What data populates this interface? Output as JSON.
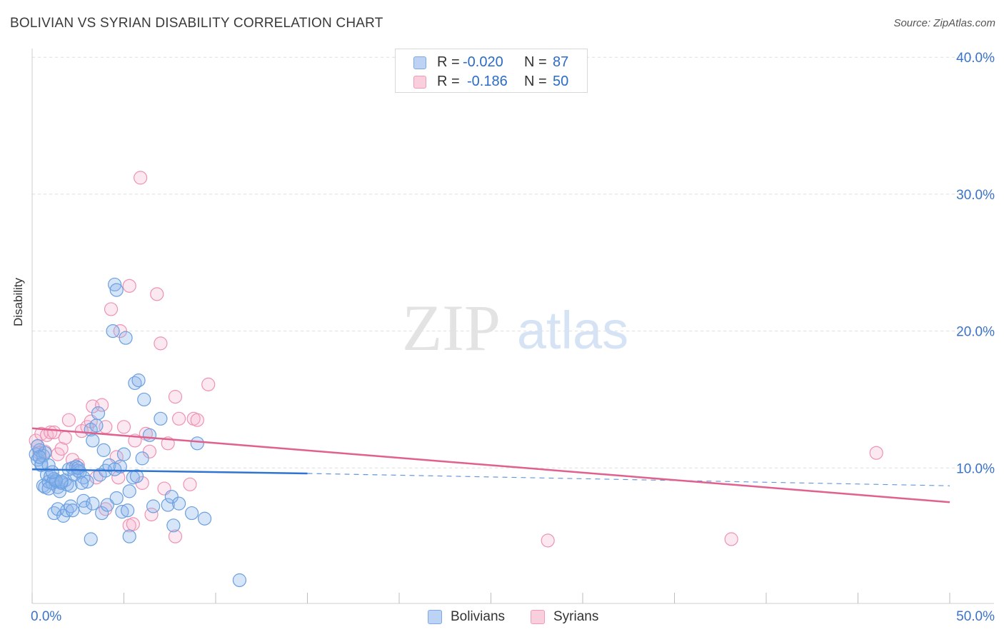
{
  "header": {
    "title": "BOLIVIAN VS SYRIAN DISABILITY CORRELATION CHART",
    "source": "Source: ZipAtlas.com"
  },
  "watermark": {
    "zip": "ZIP",
    "atlas": "atlas"
  },
  "legend": {
    "rows": [
      {
        "r_label": "R =",
        "r_value": "-0.020",
        "n_label": "N =",
        "n_value": "87",
        "color": "#7aa8e8",
        "fill": "#bcd3f5"
      },
      {
        "r_label": "R =",
        "r_value": "-0.186",
        "n_label": "N =",
        "n_value": "50",
        "color": "#ee9ab8",
        "fill": "#f9cfdd"
      }
    ]
  },
  "bottom_legend": {
    "items": [
      "Bolivians",
      "Syrians"
    ]
  },
  "colors": {
    "bolivian_stroke": "#6a9fe0",
    "bolivian_fill": "rgba(140,180,235,0.35)",
    "syrian_stroke": "#ee92b2",
    "syrian_fill": "rgba(245,180,205,0.30)",
    "bolivian_line": "#2f74d0",
    "syrian_line": "#e0608e",
    "axis_text": "#3b73c8",
    "grid": "#dddddd"
  },
  "chart_data": {
    "type": "scatter",
    "title": "BOLIVIAN VS SYRIAN DISABILITY CORRELATION CHART",
    "xlabel": "",
    "ylabel": "Disability",
    "xlim": [
      0,
      50
    ],
    "ylim": [
      0,
      40
    ],
    "x_tick_labels": [
      "0.0%",
      "50.0%"
    ],
    "y_ticks": [
      10,
      20,
      30,
      40
    ],
    "y_tick_labels": [
      "10.0%",
      "20.0%",
      "30.0%",
      "40.0%"
    ],
    "series": [
      {
        "name": "Bolivians",
        "r": -0.02,
        "n": 87,
        "trend": {
          "x_start": 0,
          "y_start": 9.9,
          "x_solid_end": 15,
          "y_solid_end": 9.6,
          "x_end": 50,
          "y_end": 8.7
        },
        "points": [
          [
            0.2,
            11.0
          ],
          [
            0.3,
            10.6
          ],
          [
            0.4,
            11.3
          ],
          [
            0.5,
            10.2
          ],
          [
            0.6,
            10.9
          ],
          [
            0.7,
            11.1
          ],
          [
            0.5,
            10.3
          ],
          [
            0.8,
            9.5
          ],
          [
            0.6,
            8.7
          ],
          [
            0.7,
            8.6
          ],
          [
            0.9,
            9.0
          ],
          [
            1.0,
            9.4
          ],
          [
            1.1,
            8.9
          ],
          [
            1.2,
            9.2
          ],
          [
            1.3,
            9.0
          ],
          [
            1.4,
            8.6
          ],
          [
            1.5,
            8.3
          ],
          [
            1.6,
            8.9
          ],
          [
            1.8,
            9.1
          ],
          [
            1.9,
            8.8
          ],
          [
            2.0,
            9.9
          ],
          [
            2.1,
            8.7
          ],
          [
            2.2,
            10.0
          ],
          [
            2.4,
            10.1
          ],
          [
            2.5,
            9.8
          ],
          [
            2.6,
            9.7
          ],
          [
            2.8,
            9.3
          ],
          [
            3.0,
            9.0
          ],
          [
            3.2,
            12.8
          ],
          [
            3.3,
            12.0
          ],
          [
            3.5,
            13.1
          ],
          [
            3.6,
            14.0
          ],
          [
            3.7,
            9.5
          ],
          [
            3.9,
            11.3
          ],
          [
            4.0,
            9.8
          ],
          [
            4.2,
            10.2
          ],
          [
            4.4,
            20.0
          ],
          [
            4.5,
            23.4
          ],
          [
            4.6,
            23.0
          ],
          [
            4.8,
            10.1
          ],
          [
            5.0,
            11.0
          ],
          [
            5.1,
            19.5
          ],
          [
            5.3,
            8.3
          ],
          [
            5.5,
            9.3
          ],
          [
            5.6,
            16.2
          ],
          [
            5.8,
            16.4
          ],
          [
            6.0,
            10.7
          ],
          [
            6.1,
            15.0
          ],
          [
            6.4,
            12.4
          ],
          [
            6.6,
            7.2
          ],
          [
            7.0,
            13.6
          ],
          [
            7.4,
            7.3
          ],
          [
            7.6,
            7.9
          ],
          [
            8.0,
            7.4
          ],
          [
            7.7,
            5.8
          ],
          [
            9.4,
            6.3
          ],
          [
            9.0,
            11.8
          ],
          [
            8.7,
            6.7
          ],
          [
            1.2,
            6.7
          ],
          [
            1.4,
            7.0
          ],
          [
            1.7,
            6.5
          ],
          [
            1.9,
            6.9
          ],
          [
            2.1,
            7.2
          ],
          [
            2.2,
            6.9
          ],
          [
            2.8,
            7.6
          ],
          [
            2.9,
            7.1
          ],
          [
            3.3,
            7.4
          ],
          [
            3.8,
            6.7
          ],
          [
            4.1,
            7.3
          ],
          [
            4.6,
            7.8
          ],
          [
            4.9,
            6.8
          ],
          [
            5.2,
            6.9
          ],
          [
            5.3,
            5.0
          ],
          [
            3.2,
            4.8
          ],
          [
            11.3,
            1.8
          ],
          [
            0.9,
            8.5
          ],
          [
            1.3,
            9.1
          ],
          [
            1.6,
            9.0
          ],
          [
            2.3,
            9.5
          ],
          [
            2.7,
            8.9
          ],
          [
            0.3,
            11.6
          ],
          [
            0.4,
            10.8
          ],
          [
            0.9,
            10.2
          ],
          [
            1.1,
            9.7
          ],
          [
            2.5,
            10.0
          ],
          [
            4.5,
            9.9
          ],
          [
            5.7,
            9.4
          ]
        ]
      },
      {
        "name": "Syrians",
        "r": -0.186,
        "n": 50,
        "trend": {
          "x_start": 0,
          "y_start": 12.9,
          "x_end": 50,
          "y_end": 7.5
        },
        "points": [
          [
            0.2,
            12.0
          ],
          [
            0.3,
            11.6
          ],
          [
            0.5,
            12.5
          ],
          [
            0.7,
            11.2
          ],
          [
            0.8,
            12.4
          ],
          [
            1.0,
            12.6
          ],
          [
            1.2,
            12.6
          ],
          [
            1.4,
            11.0
          ],
          [
            1.6,
            11.4
          ],
          [
            1.8,
            12.2
          ],
          [
            2.0,
            13.5
          ],
          [
            2.2,
            10.6
          ],
          [
            2.5,
            10.2
          ],
          [
            2.7,
            12.7
          ],
          [
            3.0,
            13.0
          ],
          [
            3.2,
            13.4
          ],
          [
            3.3,
            14.5
          ],
          [
            3.8,
            14.6
          ],
          [
            4.0,
            13.0
          ],
          [
            4.3,
            21.6
          ],
          [
            4.6,
            10.8
          ],
          [
            4.8,
            20.0
          ],
          [
            5.0,
            13.0
          ],
          [
            5.3,
            23.3
          ],
          [
            5.6,
            12.0
          ],
          [
            5.9,
            31.2
          ],
          [
            6.2,
            12.5
          ],
          [
            6.4,
            11.2
          ],
          [
            6.8,
            22.7
          ],
          [
            7.0,
            19.1
          ],
          [
            7.4,
            11.8
          ],
          [
            7.8,
            15.2
          ],
          [
            8.0,
            13.6
          ],
          [
            8.6,
            8.8
          ],
          [
            8.8,
            13.6
          ],
          [
            9.0,
            13.5
          ],
          [
            9.6,
            16.1
          ],
          [
            3.5,
            9.3
          ],
          [
            4.0,
            7.0
          ],
          [
            4.7,
            9.3
          ],
          [
            5.3,
            5.8
          ],
          [
            5.5,
            5.9
          ],
          [
            6.0,
            8.9
          ],
          [
            6.5,
            6.6
          ],
          [
            7.2,
            8.5
          ],
          [
            7.8,
            5.0
          ],
          [
            28.1,
            4.7
          ],
          [
            38.1,
            4.8
          ],
          [
            46.0,
            11.1
          ],
          [
            0.4,
            11.1
          ]
        ]
      }
    ]
  }
}
